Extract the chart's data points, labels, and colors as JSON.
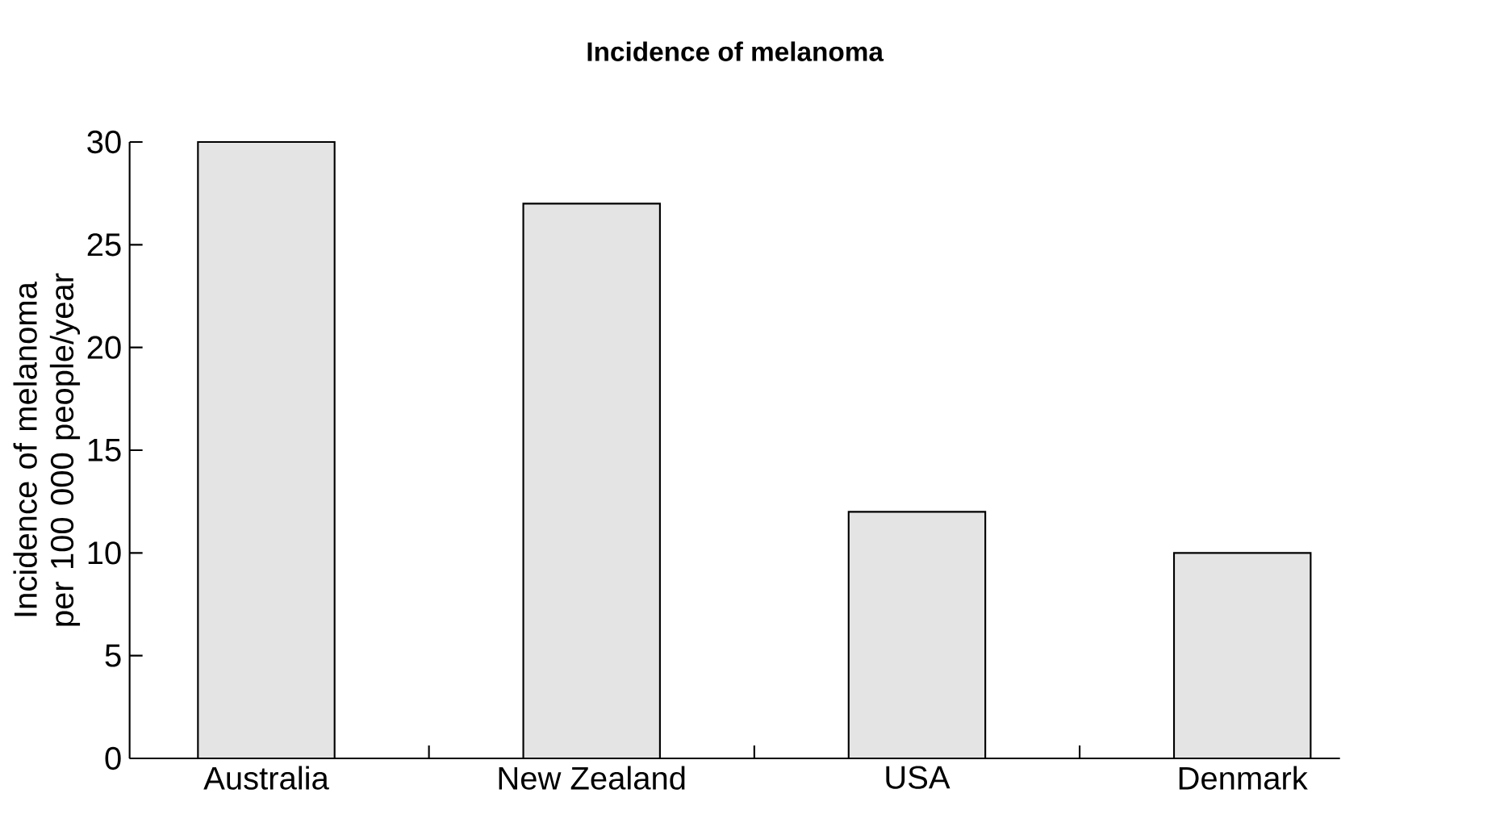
{
  "chart_data": {
    "type": "bar",
    "title": "Incidence of melanoma",
    "ylabel": "Incidence of melanoma per 100 000 people/year",
    "categories": [
      "Australia",
      "New Zealand",
      "USA",
      "Denmark"
    ],
    "values": [
      30,
      27,
      12,
      10
    ],
    "color": "#e4e4e4",
    "ylim": [
      0,
      30
    ],
    "yticks": [
      0,
      5,
      10,
      15,
      20,
      25,
      30
    ]
  }
}
